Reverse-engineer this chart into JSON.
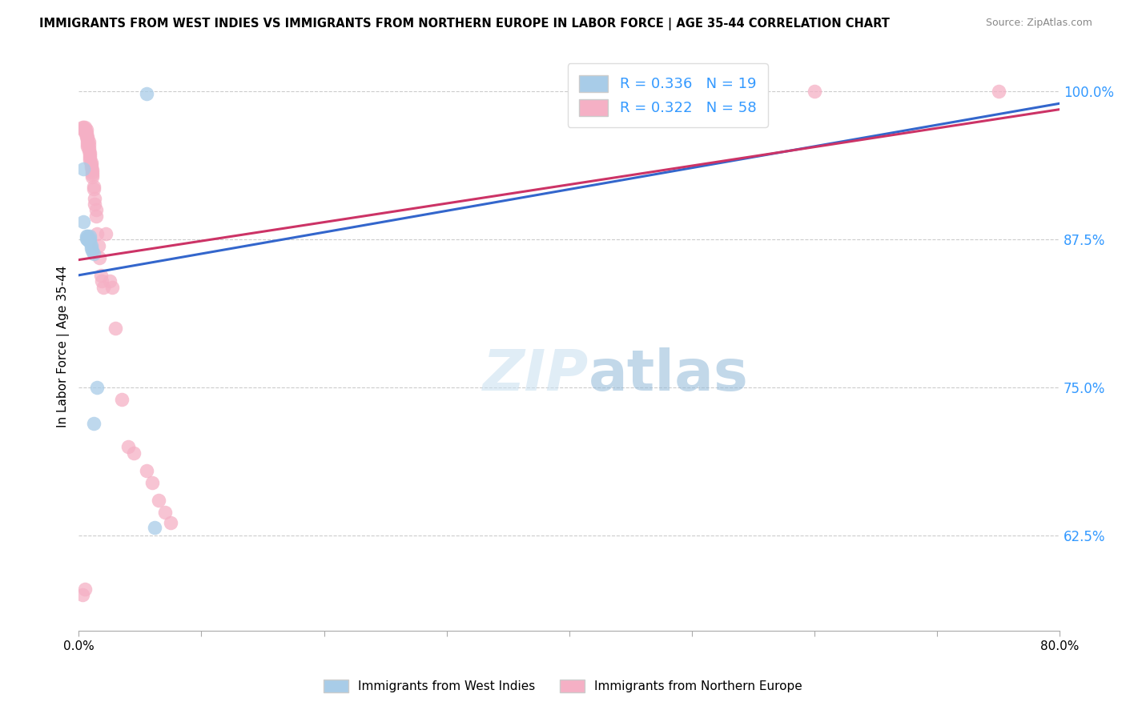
{
  "title": "IMMIGRANTS FROM WEST INDIES VS IMMIGRANTS FROM NORTHERN EUROPE IN LABOR FORCE | AGE 35-44 CORRELATION CHART",
  "source": "Source: ZipAtlas.com",
  "ylabel": "In Labor Force | Age 35-44",
  "xlim": [
    0.0,
    0.8
  ],
  "ylim": [
    0.545,
    1.025
  ],
  "xticks": [
    0.0,
    0.1,
    0.2,
    0.3,
    0.4,
    0.5,
    0.6,
    0.7,
    0.8
  ],
  "xtick_labels": [
    "0.0%",
    "",
    "",
    "",
    "",
    "",
    "",
    "",
    "80.0%"
  ],
  "yticks": [
    0.625,
    0.75,
    0.875,
    1.0
  ],
  "ytick_labels": [
    "62.5%",
    "75.0%",
    "87.5%",
    "100.0%"
  ],
  "blue_label": "Immigrants from West Indies",
  "pink_label": "Immigrants from Northern Europe",
  "blue_R": 0.336,
  "blue_N": 19,
  "pink_R": 0.322,
  "pink_N": 58,
  "blue_color": "#a8cce8",
  "pink_color": "#f5b0c5",
  "blue_line_color": "#3366cc",
  "pink_line_color": "#cc3366",
  "axis_color": "#3399ff",
  "watermark_color": "#ddeeff",
  "blue_x": [
    0.004,
    0.004,
    0.006,
    0.006,
    0.007,
    0.007,
    0.007,
    0.008,
    0.009,
    0.009,
    0.009,
    0.01,
    0.01,
    0.011,
    0.012,
    0.012,
    0.015,
    0.055,
    0.062
  ],
  "blue_y": [
    0.935,
    0.89,
    0.878,
    0.876,
    0.878,
    0.875,
    0.875,
    0.875,
    0.878,
    0.876,
    0.873,
    0.87,
    0.868,
    0.866,
    0.863,
    0.72,
    0.75,
    0.998,
    0.632
  ],
  "pink_x": [
    0.003,
    0.004,
    0.004,
    0.005,
    0.005,
    0.005,
    0.006,
    0.006,
    0.006,
    0.006,
    0.007,
    0.007,
    0.007,
    0.007,
    0.007,
    0.008,
    0.008,
    0.008,
    0.008,
    0.009,
    0.009,
    0.009,
    0.009,
    0.01,
    0.01,
    0.01,
    0.011,
    0.011,
    0.011,
    0.011,
    0.012,
    0.012,
    0.013,
    0.013,
    0.014,
    0.014,
    0.015,
    0.016,
    0.017,
    0.018,
    0.019,
    0.02,
    0.022,
    0.025,
    0.027,
    0.03,
    0.035,
    0.04,
    0.045,
    0.055,
    0.06,
    0.065,
    0.07,
    0.075,
    0.6,
    0.75,
    0.003,
    0.005
  ],
  "pink_y": [
    0.97,
    0.97,
    0.968,
    0.97,
    0.968,
    0.966,
    0.968,
    0.965,
    0.963,
    0.962,
    0.962,
    0.96,
    0.958,
    0.956,
    0.954,
    0.958,
    0.955,
    0.952,
    0.95,
    0.948,
    0.946,
    0.944,
    0.942,
    0.94,
    0.938,
    0.936,
    0.934,
    0.932,
    0.93,
    0.928,
    0.92,
    0.918,
    0.91,
    0.905,
    0.9,
    0.895,
    0.88,
    0.87,
    0.86,
    0.845,
    0.84,
    0.835,
    0.88,
    0.84,
    0.835,
    0.8,
    0.74,
    0.7,
    0.695,
    0.68,
    0.67,
    0.655,
    0.645,
    0.636,
    1.0,
    1.0,
    0.575,
    0.58
  ],
  "blue_line_x0": 0.0,
  "blue_line_y0": 0.845,
  "blue_line_x1": 0.8,
  "blue_line_y1": 0.99,
  "pink_line_x0": 0.0,
  "pink_line_y0": 0.858,
  "pink_line_x1": 0.8,
  "pink_line_y1": 0.985
}
